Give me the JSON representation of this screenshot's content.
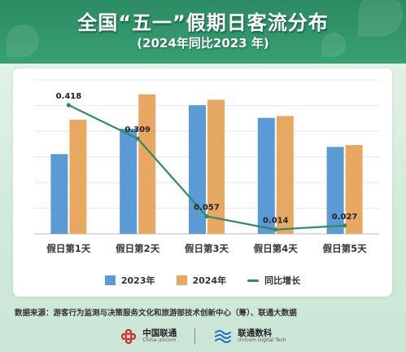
{
  "header": {
    "title": "全国“五一”假期日客流分布",
    "subtitle": "(2024年同比2023 年)"
  },
  "chart_data": {
    "type": "bar",
    "categories": [
      "假日第1天",
      "假日第2天",
      "假日第3天",
      "假日第4天",
      "假日第5天"
    ],
    "series": [
      {
        "name": "2023年",
        "type": "bar",
        "color": "#5b9bd5",
        "values": [
          0.44,
          0.58,
          0.71,
          0.64,
          0.48
        ]
      },
      {
        "name": "2024年",
        "type": "bar",
        "color": "#e8a861",
        "values": [
          0.63,
          0.77,
          0.74,
          0.65,
          0.49
        ]
      },
      {
        "name": "同比增长",
        "type": "line",
        "color": "#2e8b62",
        "values": [
          0.418,
          0.309,
          0.057,
          0.014,
          0.027
        ]
      }
    ],
    "grid": true,
    "legend": "bottom"
  },
  "source": "数据来源：游客行为监测与决策服务文化和旅游部技术创新中心（筹）、联通大数据",
  "logos": [
    {
      "main": "中国联通",
      "sub": "China unicom",
      "icon": "china-unicom-knot-icon",
      "color": "#d7282f"
    },
    {
      "main": "联通数科",
      "sub": "Unicom Digital Tech",
      "icon": "unicom-digital-tech-icon",
      "color": "#1f6fc5"
    }
  ]
}
